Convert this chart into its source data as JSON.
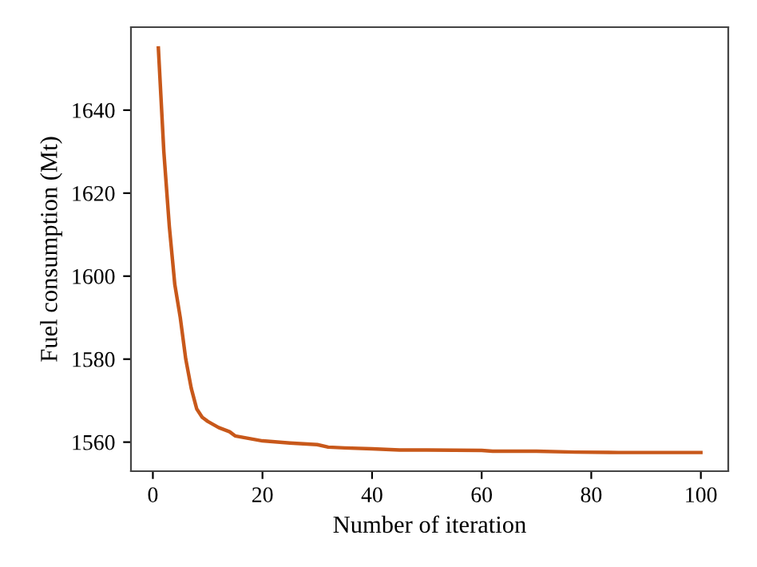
{
  "chart_data": {
    "type": "line",
    "xlabel": "Number of iteration",
    "ylabel": "Fuel consumption (Mt)",
    "x": [
      1,
      2,
      3,
      4,
      5,
      6,
      7,
      8,
      9,
      10,
      12,
      14,
      15,
      17,
      20,
      25,
      30,
      32,
      35,
      40,
      45,
      50,
      60,
      62,
      70,
      77,
      85,
      100
    ],
    "series": [
      {
        "color": "#c8581a",
        "values": [
          1655,
          1630,
          1612,
          1598,
          1590,
          1580,
          1573,
          1568,
          1566,
          1565,
          1563.5,
          1562.5,
          1561.5,
          1561,
          1560.3,
          1559.8,
          1559.4,
          1558.8,
          1558.6,
          1558.4,
          1558.1,
          1558.1,
          1558,
          1557.8,
          1557.8,
          1557.6,
          1557.5,
          1557.5
        ]
      }
    ],
    "xlim": [
      -4,
      105
    ],
    "ylim": [
      1553,
      1660
    ],
    "xticks": [
      0,
      20,
      40,
      60,
      80,
      100
    ],
    "yticks": [
      1560,
      1580,
      1600,
      1620,
      1640
    ],
    "grid": false,
    "legend": false
  }
}
